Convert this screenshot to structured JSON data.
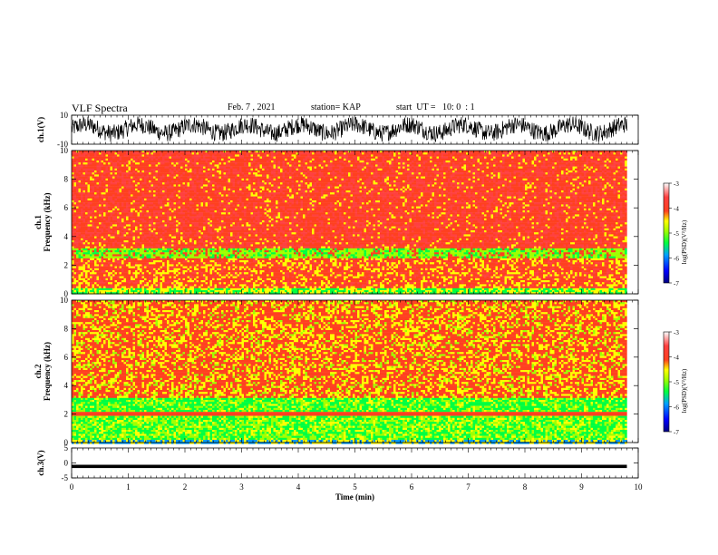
{
  "header": {
    "title": "VLF Spectra",
    "date": "Feb. 7 , 2021",
    "station": "station= KAP",
    "start": "start  UT =   10: 0  : 1"
  },
  "chart_data": [
    {
      "type": "line",
      "panel": "ch1-waveform",
      "ylabel": "ch.1(V)",
      "ylim": [
        -10,
        10
      ],
      "yticks": [
        10,
        -10
      ],
      "xlim": [
        0,
        10
      ],
      "description_values": "noisy oscillating waveform between about -7 and +10 V"
    },
    {
      "type": "heatmap",
      "panel": "ch1-spectrogram",
      "ylabel": "ch.1\nFrequency (kHz)",
      "ylim": [
        0,
        10
      ],
      "yticks": [
        0,
        2,
        4,
        6,
        8,
        10
      ],
      "xlim": [
        0,
        9.8
      ],
      "colorbar": {
        "label": "log(PSD)(V²/Hz)",
        "range": [
          -7,
          -3
        ],
        "ticks": [
          "-3",
          "-4",
          "-5",
          "-6",
          "-7"
        ]
      }
    },
    {
      "type": "heatmap",
      "panel": "ch2-spectrogram",
      "ylabel": "ch.2\nFrequency (kHz)",
      "ylim": [
        0,
        10
      ],
      "yticks": [
        0,
        2,
        4,
        6,
        8,
        10
      ],
      "xlim": [
        0,
        9.8
      ],
      "colorbar": {
        "label": "log(PSD)(V²/Hz)",
        "range": [
          -7,
          -3
        ],
        "ticks": [
          "-3",
          "-4",
          "-5",
          "-6",
          "-7"
        ]
      }
    },
    {
      "type": "line",
      "panel": "ch3-waveform",
      "ylabel": "ch.3(V)",
      "ylim": [
        -5,
        5
      ],
      "yticks": [
        5,
        0,
        -5
      ],
      "xlim": [
        0,
        10
      ],
      "xlabel": "Time (min)",
      "xticks": [
        0,
        1,
        2,
        3,
        4,
        5,
        6,
        7,
        8,
        9,
        10
      ]
    }
  ],
  "colors": {
    "scale": [
      "#000080",
      "#0000ff",
      "#0080ff",
      "#00c0ff",
      "#00ff40",
      "#80ff00",
      "#ffff00",
      "#ffc000",
      "#ff4020",
      "#ff3030",
      "#ffffff"
    ]
  }
}
